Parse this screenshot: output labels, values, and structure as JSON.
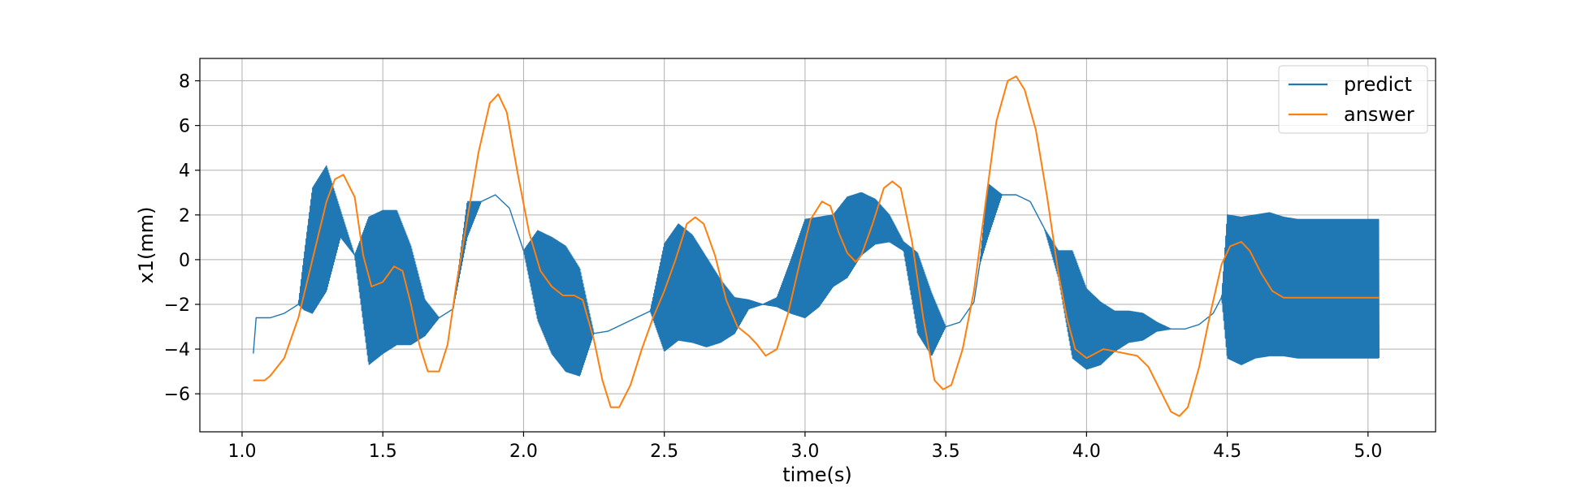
{
  "chart_data": {
    "type": "line",
    "xlabel": "time(s)",
    "ylabel": "x1(mm)",
    "xlim": [
      0.85,
      5.24
    ],
    "ylim": [
      -7.7,
      9.0
    ],
    "xticks": [
      1.0,
      1.5,
      2.0,
      2.5,
      3.0,
      3.5,
      4.0,
      4.5,
      5.0
    ],
    "xtick_labels": [
      "1.0",
      "1.5",
      "2.0",
      "2.5",
      "3.0",
      "3.5",
      "4.0",
      "4.5",
      "5.0"
    ],
    "yticks": [
      -6,
      -4,
      -2,
      0,
      2,
      4,
      6,
      8
    ],
    "ytick_labels": [
      "−6",
      "−4",
      "−2",
      "0",
      "2",
      "4",
      "6",
      "8"
    ],
    "grid": true,
    "legend_position": "top-right",
    "series": [
      {
        "name": "predict",
        "color": "#1f77b4",
        "style": "oscillating band with center line",
        "center": {
          "x": [
            1.04,
            1.05,
            1.1,
            1.15,
            1.2,
            1.25,
            1.3,
            1.35,
            1.4,
            1.45,
            1.5,
            1.55,
            1.6,
            1.65,
            1.7,
            1.75,
            1.8,
            1.85,
            1.9,
            1.95,
            2.0,
            2.05,
            2.1,
            2.15,
            2.2,
            2.25,
            2.3,
            2.35,
            2.4,
            2.45,
            2.5,
            2.55,
            2.6,
            2.65,
            2.7,
            2.75,
            2.8,
            2.85,
            2.9,
            2.95,
            3.0,
            3.05,
            3.1,
            3.15,
            3.2,
            3.25,
            3.3,
            3.35,
            3.4,
            3.45,
            3.5,
            3.55,
            3.6,
            3.65,
            3.7,
            3.75,
            3.8,
            3.85,
            3.9,
            3.95,
            4.0,
            4.05,
            4.1,
            4.15,
            4.2,
            4.25,
            4.3,
            4.35,
            4.4,
            4.45,
            4.5,
            4.55,
            4.6,
            4.65,
            4.7,
            4.75,
            4.8,
            4.85,
            4.9,
            4.95,
            5.0,
            5.04
          ],
          "y": [
            -4.2,
            -2.6,
            -2.6,
            -2.4,
            -2.0,
            0.4,
            1.4,
            1.6,
            0.2,
            -1.4,
            -1.0,
            -0.8,
            -1.6,
            -2.6,
            -2.6,
            -2.2,
            1.8,
            2.6,
            2.9,
            2.3,
            0.4,
            -0.7,
            -1.6,
            -2.2,
            -2.8,
            -3.3,
            -3.2,
            -2.9,
            -2.6,
            -2.3,
            -1.7,
            -1.0,
            -1.3,
            -1.9,
            -2.3,
            -2.5,
            -2.0,
            -2.0,
            -1.9,
            -1.2,
            -0.4,
            -0.1,
            0.4,
            1.0,
            1.6,
            1.7,
            1.4,
            0.6,
            -1.5,
            -2.9,
            -3.0,
            -2.8,
            -1.9,
            2.2,
            2.9,
            2.9,
            2.6,
            1.4,
            -0.2,
            -2.0,
            -3.1,
            -3.3,
            -3.2,
            -3.0,
            -3.0,
            -3.0,
            -3.1,
            -3.1,
            -2.9,
            -2.4,
            -1.2,
            -1.4,
            -1.2,
            -1.1,
            -1.2,
            -1.3,
            -1.3,
            -1.3,
            -1.3,
            -1.3,
            -1.3,
            -1.3
          ]
        },
        "amplitude": {
          "x": [
            1.04,
            1.05,
            1.15,
            1.2,
            1.22,
            1.25,
            1.3,
            1.35,
            1.4,
            1.45,
            1.5,
            1.55,
            1.6,
            1.65,
            1.7,
            1.75,
            1.8,
            1.85,
            1.9,
            1.95,
            2.0,
            2.05,
            2.1,
            2.15,
            2.2,
            2.25,
            2.3,
            2.35,
            2.4,
            2.45,
            2.5,
            2.55,
            2.6,
            2.65,
            2.7,
            2.75,
            2.8,
            2.85,
            2.9,
            2.95,
            3.0,
            3.05,
            3.1,
            3.15,
            3.2,
            3.25,
            3.3,
            3.35,
            3.4,
            3.45,
            3.5,
            3.55,
            3.6,
            3.62,
            3.65,
            3.7,
            3.85,
            3.9,
            3.95,
            4.0,
            4.05,
            4.1,
            4.15,
            4.2,
            4.25,
            4.3,
            4.35,
            4.4,
            4.45,
            4.48,
            4.5,
            4.55,
            4.6,
            4.65,
            4.7,
            4.75,
            4.8,
            4.85,
            4.9,
            4.95,
            5.0,
            5.04
          ],
          "y": [
            0.0,
            0.0,
            0.0,
            0.0,
            1.2,
            2.8,
            2.8,
            0.6,
            0.0,
            3.3,
            3.2,
            3.0,
            2.2,
            0.8,
            0.0,
            0.0,
            0.8,
            0.0,
            0.0,
            0.0,
            0.0,
            2.0,
            2.6,
            2.8,
            2.4,
            0.0,
            0.0,
            0.0,
            0.0,
            0.0,
            2.4,
            2.6,
            2.4,
            2.0,
            1.4,
            0.8,
            0.2,
            0.0,
            0.2,
            1.2,
            2.2,
            2.0,
            1.6,
            1.8,
            1.4,
            1.0,
            0.6,
            0.2,
            1.8,
            1.4,
            0.0,
            0.0,
            0.0,
            0.0,
            1.2,
            0.0,
            0.0,
            0.6,
            2.4,
            1.8,
            1.4,
            0.9,
            0.7,
            0.6,
            0.2,
            0.0,
            0.0,
            0.0,
            0.0,
            0.0,
            3.2,
            3.3,
            3.2,
            3.2,
            3.1,
            3.1,
            3.1,
            3.1,
            3.1,
            3.1,
            3.1,
            3.1
          ]
        }
      },
      {
        "name": "answer",
        "color": "#ff7f0e",
        "x": [
          1.04,
          1.08,
          1.1,
          1.15,
          1.2,
          1.25,
          1.3,
          1.33,
          1.36,
          1.4,
          1.43,
          1.46,
          1.5,
          1.54,
          1.57,
          1.6,
          1.63,
          1.66,
          1.7,
          1.73,
          1.76,
          1.8,
          1.84,
          1.88,
          1.91,
          1.94,
          1.98,
          2.02,
          2.06,
          2.1,
          2.14,
          2.18,
          2.21,
          2.25,
          2.28,
          2.31,
          2.34,
          2.38,
          2.42,
          2.46,
          2.5,
          2.54,
          2.58,
          2.61,
          2.64,
          2.68,
          2.72,
          2.76,
          2.8,
          2.83,
          2.86,
          2.9,
          2.94,
          2.98,
          3.02,
          3.06,
          3.09,
          3.12,
          3.15,
          3.18,
          3.2,
          3.24,
          3.28,
          3.31,
          3.34,
          3.38,
          3.42,
          3.46,
          3.49,
          3.52,
          3.56,
          3.6,
          3.64,
          3.68,
          3.72,
          3.75,
          3.78,
          3.82,
          3.86,
          3.9,
          3.93,
          3.96,
          4.0,
          4.03,
          4.06,
          4.1,
          4.14,
          4.18,
          4.22,
          4.26,
          4.3,
          4.33,
          4.36,
          4.4,
          4.44,
          4.48,
          4.51,
          4.55,
          4.58,
          4.62,
          4.66,
          4.7,
          4.8,
          4.9,
          5.0,
          5.04
        ],
        "y": [
          -5.4,
          -5.4,
          -5.2,
          -4.4,
          -2.6,
          0.0,
          2.6,
          3.6,
          3.8,
          2.8,
          0.2,
          -1.2,
          -1.0,
          -0.3,
          -0.5,
          -2.0,
          -3.8,
          -5.0,
          -5.0,
          -3.8,
          -1.2,
          1.8,
          4.8,
          7.0,
          7.4,
          6.6,
          3.8,
          1.2,
          -0.5,
          -1.2,
          -1.6,
          -1.6,
          -1.8,
          -3.6,
          -5.4,
          -6.6,
          -6.6,
          -5.6,
          -4.0,
          -2.6,
          -1.4,
          0.0,
          1.6,
          1.9,
          1.6,
          0.2,
          -1.8,
          -3.0,
          -3.4,
          -3.8,
          -4.3,
          -4.0,
          -2.4,
          -0.2,
          1.8,
          2.6,
          2.4,
          1.2,
          0.3,
          -0.1,
          0.2,
          1.6,
          3.2,
          3.5,
          3.2,
          0.8,
          -2.6,
          -5.4,
          -5.8,
          -5.6,
          -4.0,
          -1.4,
          2.4,
          6.2,
          8.0,
          8.2,
          7.6,
          5.8,
          2.8,
          -0.6,
          -2.6,
          -4.0,
          -4.4,
          -4.2,
          -4.0,
          -4.1,
          -4.2,
          -4.3,
          -4.8,
          -5.8,
          -6.8,
          -7.0,
          -6.6,
          -4.8,
          -2.4,
          -0.2,
          0.6,
          0.8,
          0.4,
          -0.6,
          -1.4,
          -1.7,
          -1.7,
          -1.7,
          -1.7,
          -1.7
        ]
      }
    ]
  }
}
